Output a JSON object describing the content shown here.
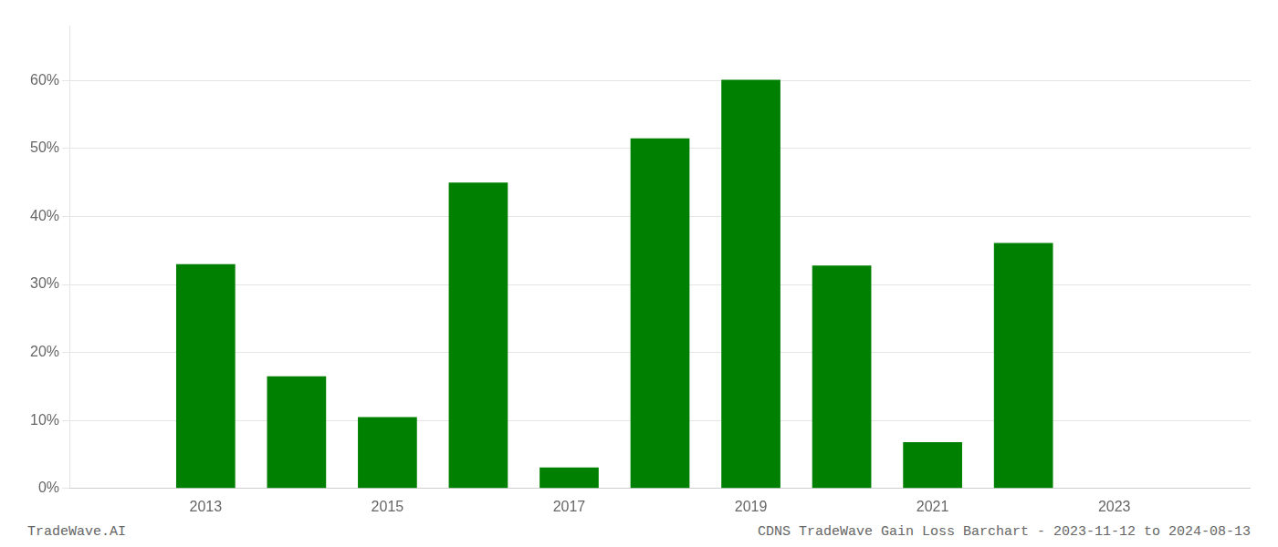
{
  "chart_data": {
    "type": "bar",
    "x": [
      2013,
      2014,
      2015,
      2016,
      2017,
      2018,
      2019,
      2020,
      2021,
      2022
    ],
    "values": [
      0.33,
      0.165,
      0.105,
      0.45,
      0.031,
      0.515,
      0.601,
      0.328,
      0.068,
      0.361
    ],
    "color": "#008000",
    "xlim": [
      2011.5,
      2024.5
    ],
    "xticks": [
      2013,
      2015,
      2017,
      2019,
      2021,
      2023
    ],
    "ylim": [
      0,
      0.68
    ],
    "yticks": [
      {
        "value": 0,
        "label": "0%"
      },
      {
        "value": 0.1,
        "label": "10%"
      },
      {
        "value": 0.2,
        "label": "20%"
      },
      {
        "value": 0.3,
        "label": "30%"
      },
      {
        "value": 0.4,
        "label": "40%"
      },
      {
        "value": 0.5,
        "label": "50%"
      },
      {
        "value": 0.6,
        "label": "60%"
      }
    ],
    "grid": "y",
    "annotations": [
      "TradeWave.AI",
      "CDNS TradeWave Gain Loss Barchart - 2023-11-12 to 2024-08-13"
    ]
  }
}
